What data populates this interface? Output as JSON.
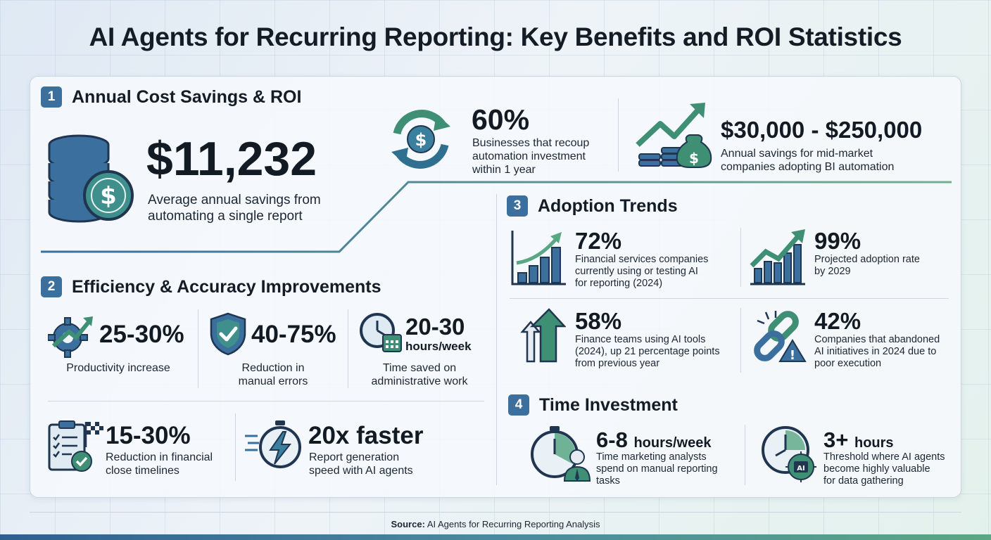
{
  "title": "AI Agents for Recurring Reporting: Key Benefits and ROI Statistics",
  "colors": {
    "navy": "#3b6f9e",
    "teal": "#3f8f74",
    "green": "#5aa784",
    "text": "#141c26"
  },
  "section1": {
    "number": "1",
    "title": "Annual Cost Savings & ROI",
    "main": {
      "icon": "database-dollar-icon",
      "value": "$11,232",
      "desc_line1": "Average annual savings from",
      "desc_line2": "automating a single report"
    },
    "stat_a": {
      "icon": "dollar-cycle-icon",
      "value": "60%",
      "desc_line1": "Businesses that recoup",
      "desc_line2": "automation investment",
      "desc_line3": "within 1 year"
    },
    "stat_b": {
      "icon": "growth-money-bag-icon",
      "value": "$30,000 - $250,000",
      "desc_line1": "Annual savings for mid-market",
      "desc_line2": "companies adopting BI automation"
    }
  },
  "section2": {
    "number": "2",
    "title": "Efficiency & Accuracy Improvements",
    "items": [
      {
        "icon": "gear-arrow-icon",
        "value": "25-30%",
        "desc_line1": "Productivity increase",
        "desc_line2": ""
      },
      {
        "icon": "shield-check-icon",
        "value": "40-75%",
        "desc_line1": "Reduction in",
        "desc_line2": "manual errors"
      },
      {
        "icon": "clock-calendar-icon",
        "value": "20-30",
        "unit": "hours/week",
        "desc_line1": "Time saved on",
        "desc_line2": "administrative work"
      },
      {
        "icon": "checklist-flag-icon",
        "value": "15-30%",
        "desc_line1": "Reduction in financial",
        "desc_line2": "close timelines"
      },
      {
        "icon": "stopwatch-lightning-icon",
        "value": "20x faster",
        "desc_line1": "Report generation",
        "desc_line2": "speed with AI agents"
      }
    ]
  },
  "section3": {
    "number": "3",
    "title": "Adoption Trends",
    "items": [
      {
        "icon": "bar-chart-growth-icon",
        "value": "72%",
        "desc_line1": "Financial services companies",
        "desc_line2": "currently using or testing AI",
        "desc_line3": "for reporting (2024)"
      },
      {
        "icon": "bar-chart-arrow-icon",
        "value": "99%",
        "desc_line1": "Projected adoption rate",
        "desc_line2": "by 2029",
        "desc_line3": ""
      },
      {
        "icon": "up-arrows-icon",
        "value": "58%",
        "desc_line1": "Finance teams using AI tools",
        "desc_line2": "(2024), up 21 percentage points",
        "desc_line3": "from previous year"
      },
      {
        "icon": "broken-link-warning-icon",
        "value": "42%",
        "desc_line1": "Companies that abandoned",
        "desc_line2": "AI initiatives in 2024 due to",
        "desc_line3": "poor execution"
      }
    ]
  },
  "section4": {
    "number": "4",
    "title": "Time Investment",
    "items": [
      {
        "icon": "stopwatch-person-icon",
        "value": "6-8",
        "unit": "hours/week",
        "desc_line1": "Time marketing analysts",
        "desc_line2": "spend on manual reporting",
        "desc_line3": "tasks"
      },
      {
        "icon": "clock-ai-brain-icon",
        "value": "3+",
        "unit": "hours",
        "desc_line1": "Threshold where AI agents",
        "desc_line2": "become highly valuable",
        "desc_line3": "for data gathering"
      }
    ]
  },
  "footer": {
    "source_label": "Source:",
    "source_text": "AI Agents for Recurring Reporting Analysis"
  }
}
